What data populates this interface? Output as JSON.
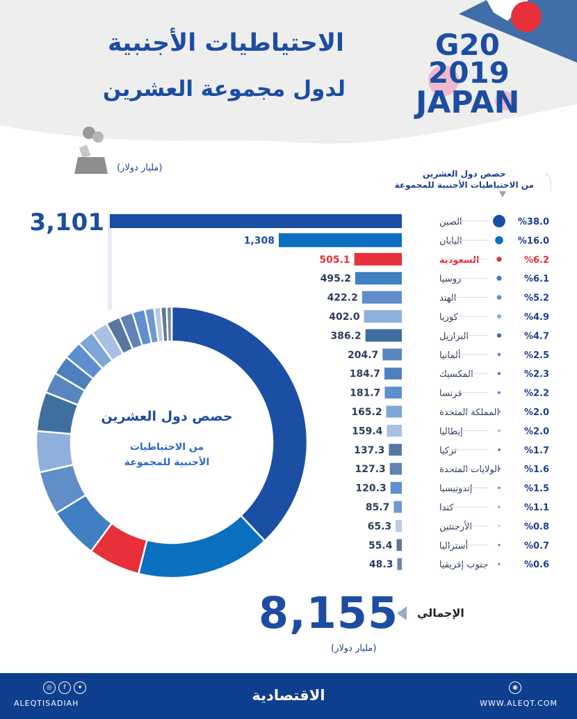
{
  "header": {
    "title": "الاحتياطيات الأجنبية",
    "subtitle": "لدول مجموعة العشرين"
  },
  "logo": {
    "line1": "G20",
    "line2": "2019",
    "line3": "JAPAN"
  },
  "unit_label": "(مليار دولار)",
  "share_caption_line1": "حصص دول العشرين",
  "share_caption_line2": "من الاحتياطيات الأجنبية للمجموعة",
  "donut": {
    "title": "حصص دول العشرين",
    "subtitle_line1": "من الاحتياطيات",
    "subtitle_line2": "الأجنبية للمجموعة"
  },
  "total": {
    "label": "الإجمالي",
    "value": "8,155",
    "unit": "(مليار دولار)"
  },
  "footer": {
    "handle": "ALEQTISADIAH",
    "brand": "الاقتصادية",
    "site": "WWW.ALEQT.COM",
    "social_icons": [
      "instagram-icon",
      "facebook-icon",
      "twitter-icon"
    ]
  },
  "colors": {
    "primary": "#1c4da1",
    "highlight": "#e8303a",
    "footer": "#0e3f8e"
  },
  "chart_data": {
    "type": "bar",
    "orientation": "horizontal",
    "categories": [
      "الصين",
      "اليابان",
      "السعودية",
      "روسيا",
      "الهند",
      "كوريا",
      "البرازيل",
      "ألمانيا",
      "المكسيك",
      "فرنسا",
      "المملكة المتحدة",
      "إيطاليا",
      "تركيا",
      "الولايات المتحدة",
      "إندونيسيا",
      "كندا",
      "الأرجنتين",
      "أستراليا",
      "جنوب إفريقيا"
    ],
    "values": [
      3101,
      1308,
      505.1,
      495.2,
      422.2,
      402.0,
      386.2,
      204.7,
      184.7,
      181.7,
      165.2,
      159.4,
      137.3,
      127.3,
      120.3,
      85.7,
      65.3,
      55.4,
      48.3
    ],
    "value_labels": [
      "3,101",
      "1,308",
      "505.1",
      "495.2",
      "422.2",
      "402.0",
      "386.2",
      "204.7",
      "184.7",
      "181.7",
      "165.2",
      "159.4",
      "137.3",
      "127.3",
      "120.3",
      "85.7",
      "65.3",
      "55.4",
      "48.3"
    ],
    "shares": [
      38.0,
      16.0,
      6.2,
      6.1,
      5.2,
      4.9,
      4.7,
      2.5,
      2.3,
      2.2,
      2.0,
      2.0,
      1.7,
      1.6,
      1.5,
      1.1,
      0.8,
      0.7,
      0.6
    ],
    "share_labels": [
      "%38.0",
      "%16.0",
      "%6.2",
      "%6.1",
      "%5.2",
      "%4.9",
      "%4.7",
      "%2.5",
      "%2.3",
      "%2.2",
      "%2.0",
      "%2.0",
      "%1.7",
      "%1.6",
      "%1.5",
      "%1.1",
      "%0.8",
      "%0.7",
      "%0.6"
    ],
    "bar_colors": [
      "#1b4fa3",
      "#0a6fbf",
      "#e8303a",
      "#3f7fc2",
      "#5f8ec9",
      "#8fb0da",
      "#3f6f9e",
      "#5a86c0",
      "#4f7fbf",
      "#5d8fcf",
      "#7fa6d6",
      "#a9c0e3",
      "#56779f",
      "#5f83b5",
      "#5f8fd0",
      "#6f98cf",
      "#b9cbe8",
      "#5f7894",
      "#7088a8"
    ],
    "highlight_index": 2,
    "donut": {
      "type": "pie",
      "labels": [
        "الصين",
        "اليابان",
        "السعودية",
        "روسيا",
        "الهند",
        "كوريا",
        "البرازيل",
        "ألمانيا",
        "المكسيك",
        "فرنسا",
        "المملكة المتحدة",
        "إيطاليا",
        "تركيا",
        "الولايات المتحدة",
        "إندونيسيا",
        "كندا",
        "الأرجنتين",
        "أستراليا",
        "جنوب إفريقيا"
      ],
      "values": [
        38.0,
        16.0,
        6.2,
        6.1,
        5.2,
        4.9,
        4.7,
        2.5,
        2.3,
        2.2,
        2.0,
        2.0,
        1.7,
        1.6,
        1.5,
        1.1,
        0.8,
        0.7,
        0.6
      ]
    }
  }
}
